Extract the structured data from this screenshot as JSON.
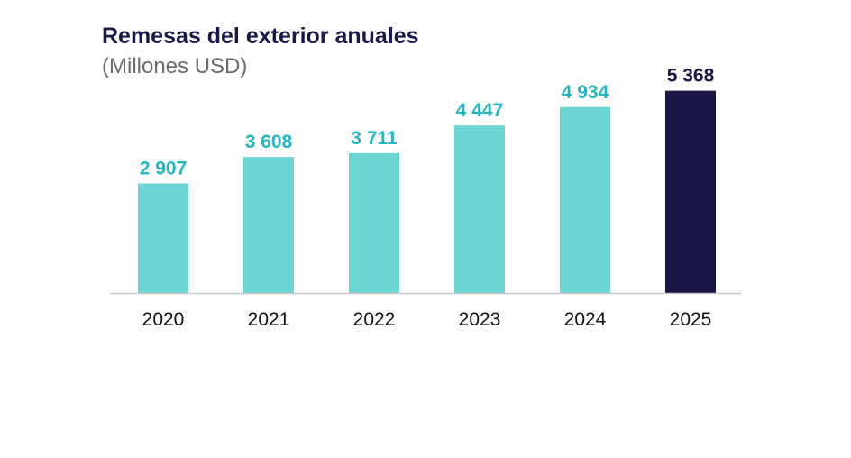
{
  "chart_data": {
    "type": "bar",
    "title": "Remesas del exterior anuales",
    "subtitle": "(Millones USD)",
    "xlabel": "",
    "ylabel": "",
    "categories": [
      "2020",
      "2021",
      "2022",
      "2023",
      "2024",
      "2025"
    ],
    "values": [
      2907,
      3608,
      3711,
      4447,
      4934,
      5368
    ],
    "value_labels": [
      "2 907",
      "3 608",
      "3 711",
      "4 447",
      "4 934",
      "5 368"
    ],
    "colors": [
      "#6dd5d3",
      "#6dd5d3",
      "#6dd5d3",
      "#6dd5d3",
      "#6dd5d3",
      "#1a1747"
    ],
    "label_colors": [
      "#27b5bd",
      "#27b5bd",
      "#27b5bd",
      "#27b5bd",
      "#27b5bd",
      "#1a1747"
    ],
    "grid": false,
    "legend": "none"
  }
}
